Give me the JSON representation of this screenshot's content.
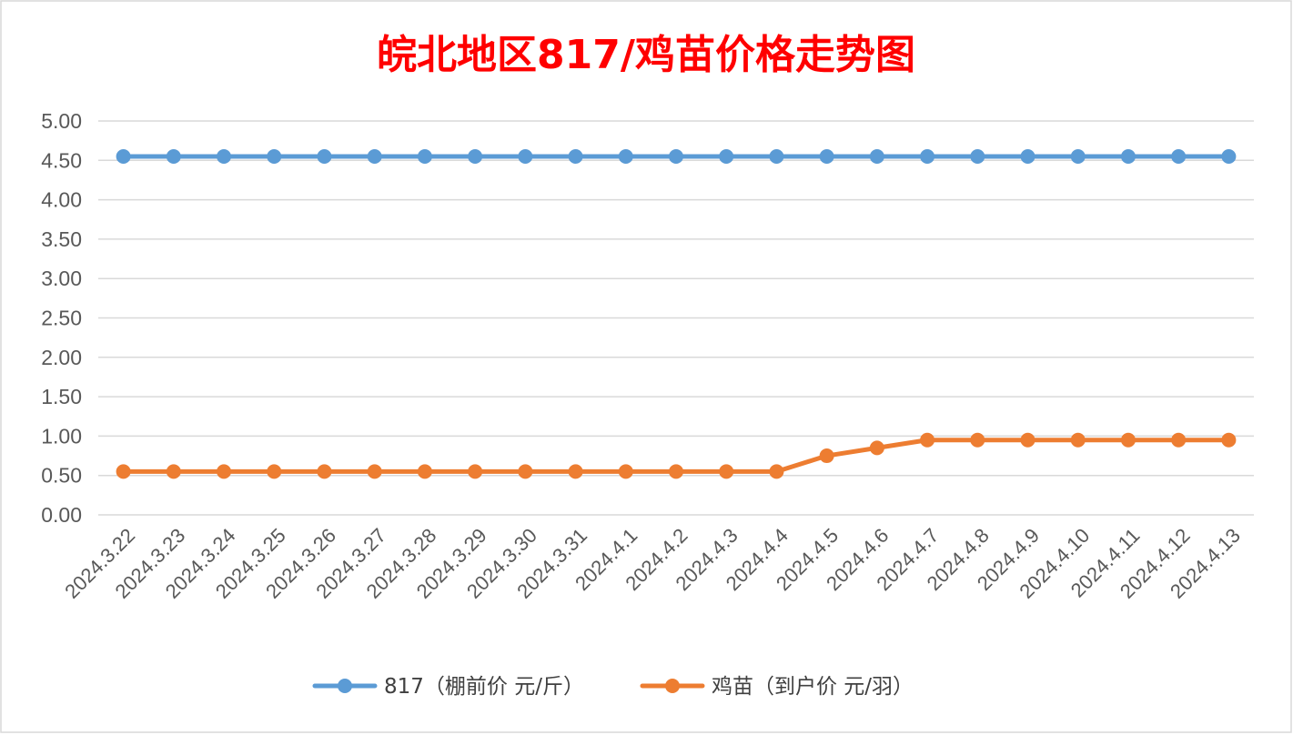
{
  "chart_data": {
    "type": "line",
    "title": "皖北地区817/鸡苗价格走势图",
    "title_color": "#ff0000",
    "categories": [
      "2024.3.22",
      "2024.3.23",
      "2024.3.24",
      "2024.3.25",
      "2024.3.26",
      "2024.3.27",
      "2024.3.28",
      "2024.3.29",
      "2024.3.30",
      "2024.3.31",
      "2024.4.1",
      "2024.4.2",
      "2024.4.3",
      "2024.4.4",
      "2024.4.5",
      "2024.4.6",
      "2024.4.7",
      "2024.4.8",
      "2024.4.9",
      "2024.4.10",
      "2024.4.11",
      "2024.4.12",
      "2024.4.13"
    ],
    "yticks": [
      "0.00",
      "0.50",
      "1.00",
      "1.50",
      "2.00",
      "2.50",
      "3.00",
      "3.50",
      "4.00",
      "4.50",
      "5.00"
    ],
    "ylim": [
      0,
      5
    ],
    "grid": true,
    "legend_position": "bottom",
    "series": [
      {
        "name": "817（棚前价 元/斤）",
        "color": "#5b9bd5",
        "values": [
          4.55,
          4.55,
          4.55,
          4.55,
          4.55,
          4.55,
          4.55,
          4.55,
          4.55,
          4.55,
          4.55,
          4.55,
          4.55,
          4.55,
          4.55,
          4.55,
          4.55,
          4.55,
          4.55,
          4.55,
          4.55,
          4.55,
          4.55
        ]
      },
      {
        "name": "鸡苗（到户价 元/羽）",
        "color": "#ed7d31",
        "values": [
          0.55,
          0.55,
          0.55,
          0.55,
          0.55,
          0.55,
          0.55,
          0.55,
          0.55,
          0.55,
          0.55,
          0.55,
          0.55,
          0.55,
          0.75,
          0.85,
          0.95,
          0.95,
          0.95,
          0.95,
          0.95,
          0.95,
          0.95
        ]
      }
    ]
  }
}
